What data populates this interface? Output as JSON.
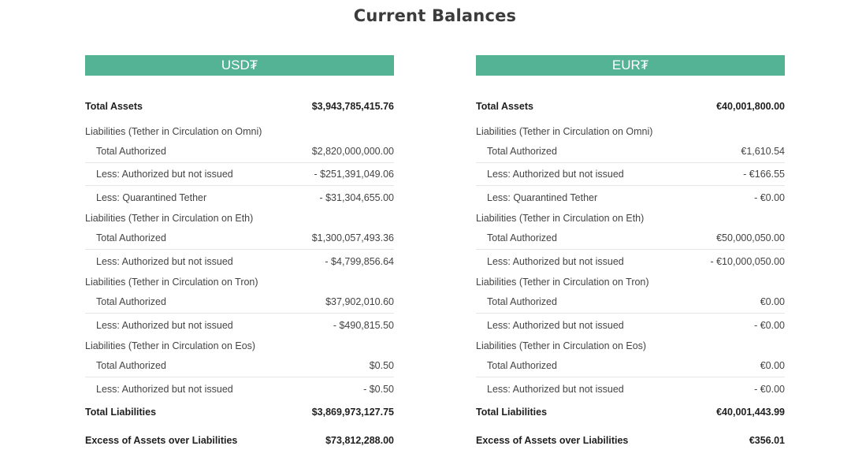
{
  "title": "Current Balances",
  "panels": [
    {
      "header": "USD₮",
      "total_assets": {
        "label": "Total Assets",
        "value": "$3,943,785,415.76"
      },
      "groups": [
        {
          "label": "Liabilities (Tether in Circulation on Omni)",
          "lines": [
            {
              "label": "Total Authorized",
              "value": "$2,820,000,000.00"
            },
            {
              "label": "Less: Authorized but not issued",
              "value": "- $251,391,049.06"
            },
            {
              "label": "Less: Quarantined Tether",
              "value": "- $31,304,655.00"
            }
          ]
        },
        {
          "label": "Liabilities (Tether in Circulation on Eth)",
          "lines": [
            {
              "label": "Total Authorized",
              "value": "$1,300,057,493.36"
            },
            {
              "label": "Less: Authorized but not issued",
              "value": "- $4,799,856.64"
            }
          ]
        },
        {
          "label": "Liabilities (Tether in Circulation on Tron)",
          "lines": [
            {
              "label": "Total Authorized",
              "value": "$37,902,010.60"
            },
            {
              "label": "Less: Authorized but not issued",
              "value": "- $490,815.50"
            }
          ]
        },
        {
          "label": "Liabilities (Tether in Circulation on Eos)",
          "lines": [
            {
              "label": "Total Authorized",
              "value": "$0.50"
            },
            {
              "label": "Less: Authorized but not issued",
              "value": "- $0.50"
            }
          ]
        }
      ],
      "total_liabilities": {
        "label": "Total Liabilities",
        "value": "$3,869,973,127.75"
      },
      "excess": {
        "label": "Excess of Assets over Liabilities",
        "value": "$73,812,288.00"
      }
    },
    {
      "header": "EUR₮",
      "total_assets": {
        "label": "Total Assets",
        "value": "€40,001,800.00"
      },
      "groups": [
        {
          "label": "Liabilities (Tether in Circulation on Omni)",
          "lines": [
            {
              "label": "Total Authorized",
              "value": "€1,610.54"
            },
            {
              "label": "Less: Authorized but not issued",
              "value": "- €166.55"
            },
            {
              "label": "Less: Quarantined Tether",
              "value": "- €0.00"
            }
          ]
        },
        {
          "label": "Liabilities (Tether in Circulation on Eth)",
          "lines": [
            {
              "label": "Total Authorized",
              "value": "€50,000,050.00"
            },
            {
              "label": "Less: Authorized but not issued",
              "value": "- €10,000,050.00"
            }
          ]
        },
        {
          "label": "Liabilities (Tether in Circulation on Tron)",
          "lines": [
            {
              "label": "Total Authorized",
              "value": "€0.00"
            },
            {
              "label": "Less: Authorized but not issued",
              "value": "- €0.00"
            }
          ]
        },
        {
          "label": "Liabilities (Tether in Circulation on Eos)",
          "lines": [
            {
              "label": "Total Authorized",
              "value": "€0.00"
            },
            {
              "label": "Less: Authorized but not issued",
              "value": "- €0.00"
            }
          ]
        }
      ],
      "total_liabilities": {
        "label": "Total Liabilities",
        "value": "€40,001,443.99"
      },
      "excess": {
        "label": "Excess of Assets over Liabilities",
        "value": "€356.01"
      }
    }
  ]
}
